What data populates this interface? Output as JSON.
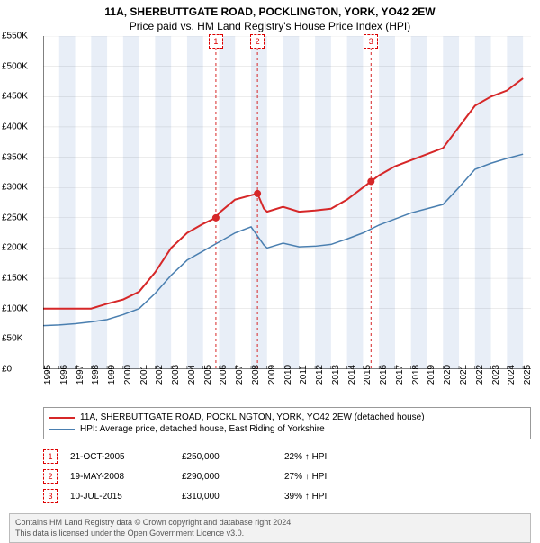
{
  "title_line1": "11A, SHERBUTTGATE ROAD, POCKLINGTON, YORK, YO42 2EW",
  "title_line2": "Price paid vs. HM Land Registry's House Price Index (HPI)",
  "chart": {
    "type": "line",
    "x_min": 1995,
    "x_max": 2025.5,
    "y_min": 0,
    "y_max": 550000,
    "ytick_step": 50000,
    "yticks_labels": [
      "£0",
      "£50K",
      "£100K",
      "£150K",
      "£200K",
      "£250K",
      "£300K",
      "£350K",
      "£400K",
      "£450K",
      "£500K",
      "£550K"
    ],
    "xticks": [
      1995,
      1996,
      1997,
      1998,
      1999,
      2000,
      2001,
      2002,
      2003,
      2004,
      2005,
      2006,
      2007,
      2008,
      2009,
      2010,
      2011,
      2012,
      2013,
      2014,
      2015,
      2016,
      2017,
      2018,
      2019,
      2020,
      2021,
      2022,
      2023,
      2024,
      2025
    ],
    "background_color": "#ffffff",
    "grid_color": "#e5e5e5",
    "band_color": "#e8eef7",
    "series": [
      {
        "name": "property",
        "color": "#d62728",
        "width": 2,
        "data": [
          [
            1995,
            100000
          ],
          [
            1996,
            100000
          ],
          [
            1997,
            100000
          ],
          [
            1998,
            100000
          ],
          [
            1999,
            108000
          ],
          [
            2000,
            115000
          ],
          [
            2001,
            128000
          ],
          [
            2002,
            160000
          ],
          [
            2003,
            200000
          ],
          [
            2004,
            225000
          ],
          [
            2005,
            240000
          ],
          [
            2005.8,
            250000
          ],
          [
            2006,
            258000
          ],
          [
            2007,
            280000
          ],
          [
            2008.4,
            290000
          ],
          [
            2008.8,
            265000
          ],
          [
            2009,
            260000
          ],
          [
            2010,
            268000
          ],
          [
            2011,
            260000
          ],
          [
            2012,
            262000
          ],
          [
            2013,
            265000
          ],
          [
            2014,
            280000
          ],
          [
            2015,
            300000
          ],
          [
            2015.5,
            310000
          ],
          [
            2016,
            320000
          ],
          [
            2017,
            335000
          ],
          [
            2018,
            345000
          ],
          [
            2019,
            355000
          ],
          [
            2020,
            365000
          ],
          [
            2021,
            400000
          ],
          [
            2022,
            435000
          ],
          [
            2023,
            450000
          ],
          [
            2024,
            460000
          ],
          [
            2025,
            480000
          ]
        ]
      },
      {
        "name": "hpi",
        "color": "#4a7fb0",
        "width": 1.5,
        "data": [
          [
            1995,
            72000
          ],
          [
            1996,
            73000
          ],
          [
            1997,
            75000
          ],
          [
            1998,
            78000
          ],
          [
            1999,
            82000
          ],
          [
            2000,
            90000
          ],
          [
            2001,
            100000
          ],
          [
            2002,
            125000
          ],
          [
            2003,
            155000
          ],
          [
            2004,
            180000
          ],
          [
            2005,
            195000
          ],
          [
            2006,
            210000
          ],
          [
            2007,
            225000
          ],
          [
            2008,
            235000
          ],
          [
            2008.8,
            205000
          ],
          [
            2009,
            200000
          ],
          [
            2010,
            208000
          ],
          [
            2011,
            202000
          ],
          [
            2012,
            203000
          ],
          [
            2013,
            206000
          ],
          [
            2014,
            215000
          ],
          [
            2015,
            225000
          ],
          [
            2016,
            238000
          ],
          [
            2017,
            248000
          ],
          [
            2018,
            258000
          ],
          [
            2019,
            265000
          ],
          [
            2020,
            272000
          ],
          [
            2021,
            300000
          ],
          [
            2022,
            330000
          ],
          [
            2023,
            340000
          ],
          [
            2024,
            348000
          ],
          [
            2025,
            355000
          ]
        ]
      }
    ],
    "markers": [
      {
        "n": "1",
        "x": 2005.8,
        "y": 250000
      },
      {
        "n": "2",
        "x": 2008.4,
        "y": 290000
      },
      {
        "n": "3",
        "x": 2015.5,
        "y": 310000
      }
    ],
    "marker_color": "#d62728",
    "marker_line_color": "#d62728"
  },
  "legend": {
    "items": [
      {
        "color": "#d62728",
        "label": "11A, SHERBUTTGATE ROAD, POCKLINGTON, YORK, YO42 2EW (detached house)"
      },
      {
        "color": "#4a7fb0",
        "label": "HPI: Average price, detached house, East Riding of Yorkshire"
      }
    ]
  },
  "events": [
    {
      "n": "1",
      "date": "21-OCT-2005",
      "price": "£250,000",
      "diff": "22% ↑ HPI"
    },
    {
      "n": "2",
      "date": "19-MAY-2008",
      "price": "£290,000",
      "diff": "27% ↑ HPI"
    },
    {
      "n": "3",
      "date": "10-JUL-2015",
      "price": "£310,000",
      "diff": "39% ↑ HPI"
    }
  ],
  "footer": {
    "line1": "Contains HM Land Registry data © Crown copyright and database right 2024.",
    "line2": "This data is licensed under the Open Government Licence v3.0."
  }
}
